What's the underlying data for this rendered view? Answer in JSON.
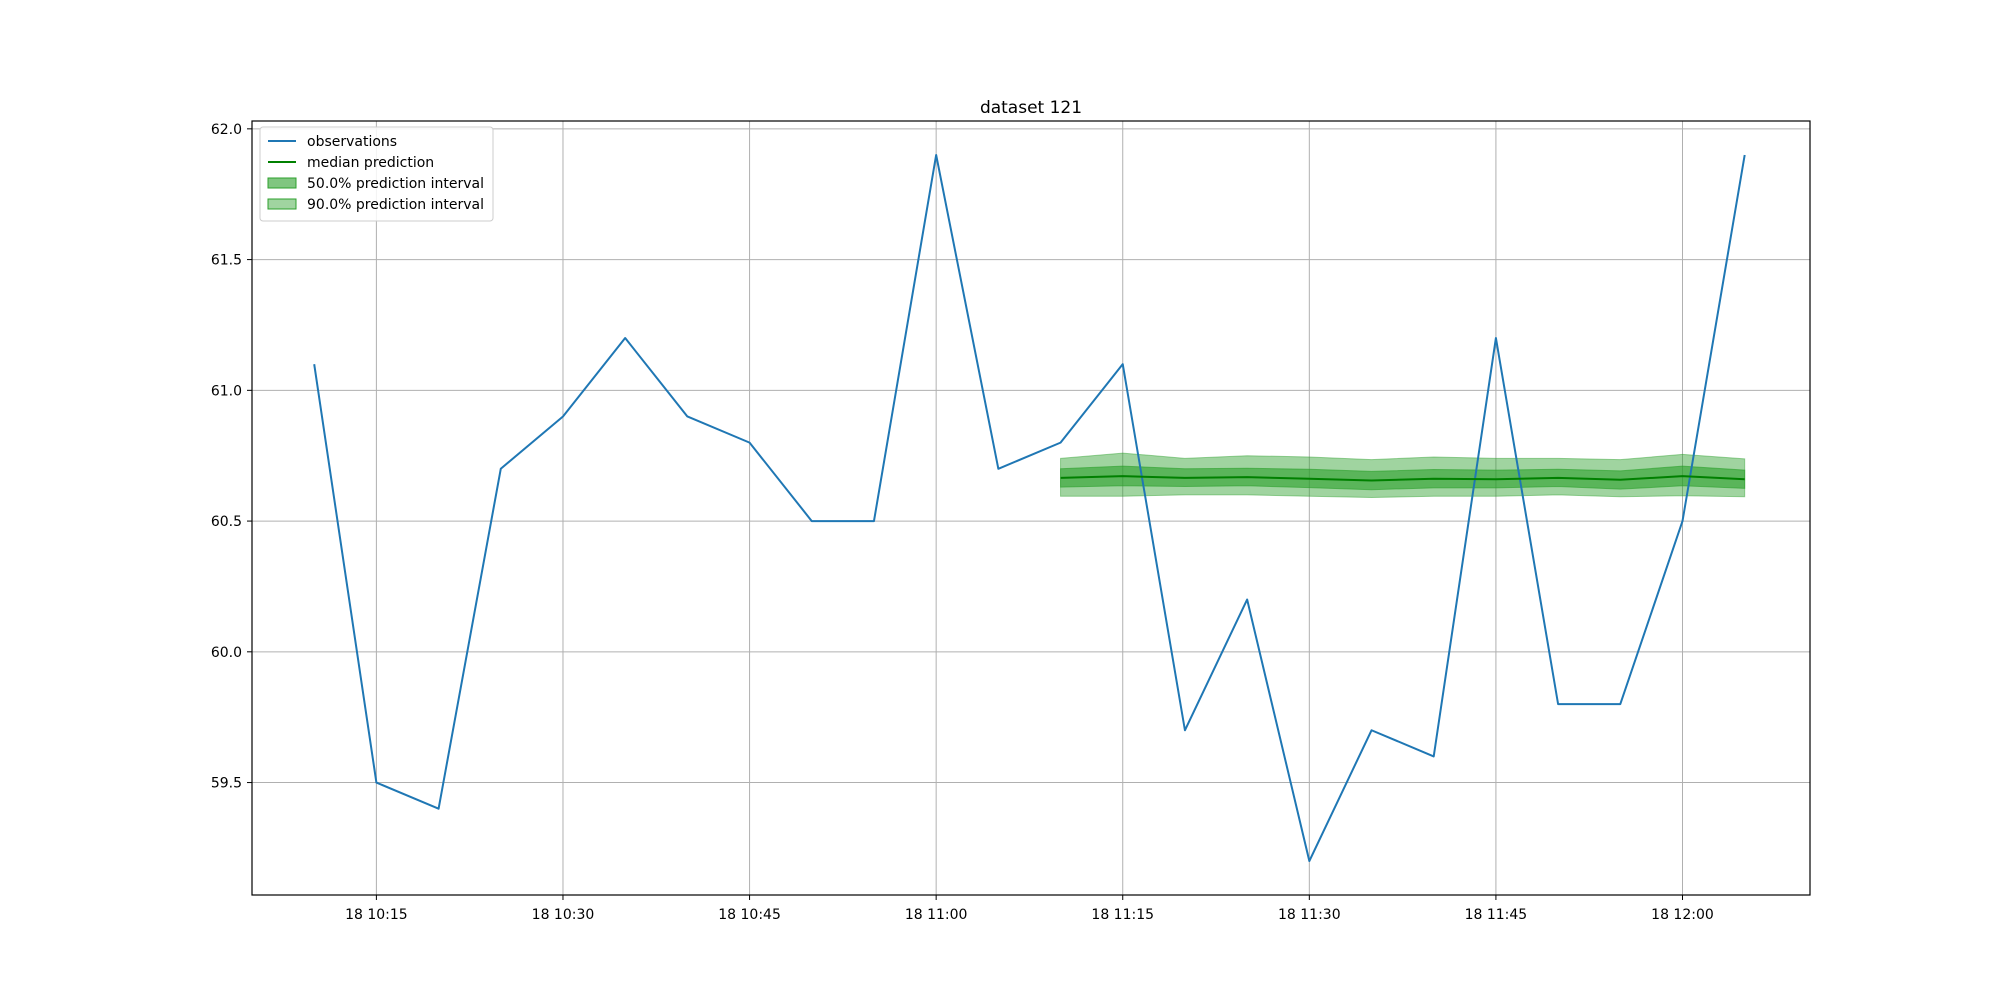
{
  "chart_data": {
    "type": "line",
    "title": "dataset 121",
    "xlabel": "",
    "ylabel": "",
    "x_interval_minutes": 5,
    "xlim": [
      "10:05:00",
      "12:10:15"
    ],
    "ylim": [
      59.07,
      62.03
    ],
    "x_ticks": [
      "10:15",
      "10:30",
      "10:45",
      "11:00",
      "11:15",
      "11:30",
      "11:45",
      "12:00"
    ],
    "x_tick_labels": [
      "18 10:15",
      "18 10:30",
      "18 10:45",
      "18 11:00",
      "18 11:15",
      "18 11:30",
      "18 11:45",
      "18 12:00"
    ],
    "y_ticks": [
      59.5,
      60.0,
      60.5,
      61.0,
      61.5,
      62.0
    ],
    "y_tick_labels": [
      "59.5",
      "60.0",
      "60.5",
      "61.0",
      "61.5",
      "62.0"
    ],
    "grid": true,
    "legend_position": "top-left",
    "legend": [
      {
        "label": "observations",
        "kind": "line",
        "color": "#1f77b4"
      },
      {
        "label": "median prediction",
        "kind": "line",
        "color": "#008000"
      },
      {
        "label": "50.0% prediction interval",
        "kind": "patch",
        "color": "#2ca02c",
        "opacity": 0.6
      },
      {
        "label": "90.0% prediction interval",
        "kind": "patch",
        "color": "#2ca02c",
        "opacity": 0.45
      }
    ],
    "observations": {
      "color": "#1f77b4",
      "x": [
        "10:10",
        "10:15",
        "10:20",
        "10:25",
        "10:30",
        "10:35",
        "10:40",
        "10:45",
        "10:50",
        "10:55",
        "11:00",
        "11:05",
        "11:10",
        "11:15",
        "11:20",
        "11:25",
        "11:30",
        "11:35",
        "11:40",
        "11:45",
        "11:50",
        "11:55",
        "12:00",
        "12:05"
      ],
      "values": [
        61.1,
        59.5,
        59.4,
        60.7,
        60.9,
        61.2,
        60.9,
        60.8,
        60.5,
        60.5,
        61.9,
        60.7,
        60.8,
        61.1,
        59.7,
        60.2,
        59.2,
        59.7,
        59.6,
        61.2,
        59.8,
        59.8,
        60.5,
        61.9
      ]
    },
    "forecast": {
      "color": "#008000",
      "x": [
        "11:10",
        "11:15",
        "11:20",
        "11:25",
        "11:30",
        "11:35",
        "11:40",
        "11:45",
        "11:50",
        "11:55",
        "12:00",
        "12:05"
      ],
      "median": [
        60.665,
        60.672,
        60.665,
        60.668,
        60.662,
        60.655,
        60.662,
        60.66,
        60.665,
        60.658,
        60.672,
        60.66
      ],
      "p50_lower": [
        60.63,
        60.635,
        60.632,
        60.635,
        60.628,
        60.62,
        60.627,
        60.627,
        60.632,
        60.622,
        60.635,
        60.625
      ],
      "p50_upper": [
        60.7,
        60.71,
        60.7,
        60.702,
        60.698,
        60.69,
        60.697,
        60.695,
        60.698,
        60.692,
        60.71,
        60.695
      ],
      "p90_lower": [
        60.595,
        60.595,
        60.6,
        60.6,
        60.595,
        60.59,
        60.595,
        60.595,
        60.6,
        60.593,
        60.597,
        60.593
      ],
      "p90_upper": [
        60.74,
        60.76,
        60.74,
        60.75,
        60.745,
        60.735,
        60.745,
        60.74,
        60.74,
        60.735,
        60.755,
        60.738
      ]
    }
  }
}
